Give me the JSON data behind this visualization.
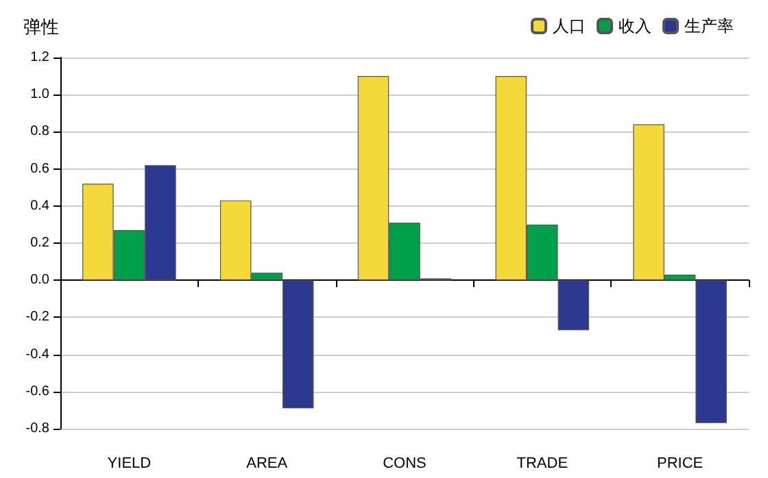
{
  "chart_data": {
    "type": "bar",
    "title": "弹性",
    "categories": [
      "YIELD",
      "AREA",
      "CONS",
      "TRADE",
      "PRICE"
    ],
    "series": [
      {
        "name": "人口",
        "color": "#f5d83a",
        "values": [
          0.52,
          0.43,
          1.1,
          1.1,
          0.84
        ]
      },
      {
        "name": "收入",
        "color": "#00a04a",
        "values": [
          0.27,
          0.04,
          0.31,
          0.3,
          0.03
        ]
      },
      {
        "name": "生产率",
        "color": "#2b3990",
        "values": [
          0.62,
          -0.69,
          0.01,
          -0.27,
          -0.77
        ]
      }
    ],
    "ylim": [
      -0.8,
      1.2
    ],
    "yticks": [
      {
        "value": -0.8,
        "label": "-0.8"
      },
      {
        "value": -0.6,
        "label": "-0.6"
      },
      {
        "value": -0.4,
        "label": "-0.4"
      },
      {
        "value": -0.2,
        "label": "-0.2"
      },
      {
        "value": 0,
        "label": "0.0"
      },
      {
        "value": 0.2,
        "label": "0.2"
      },
      {
        "value": 0.4,
        "label": "0.4"
      },
      {
        "value": 0.6,
        "label": "0.6"
      },
      {
        "value": 0.8,
        "label": "0.8"
      },
      {
        "value": 1,
        "label": "1.0"
      },
      {
        "value": 1.2,
        "label": "1.2"
      }
    ],
    "grid": "y",
    "legend": "top right"
  }
}
